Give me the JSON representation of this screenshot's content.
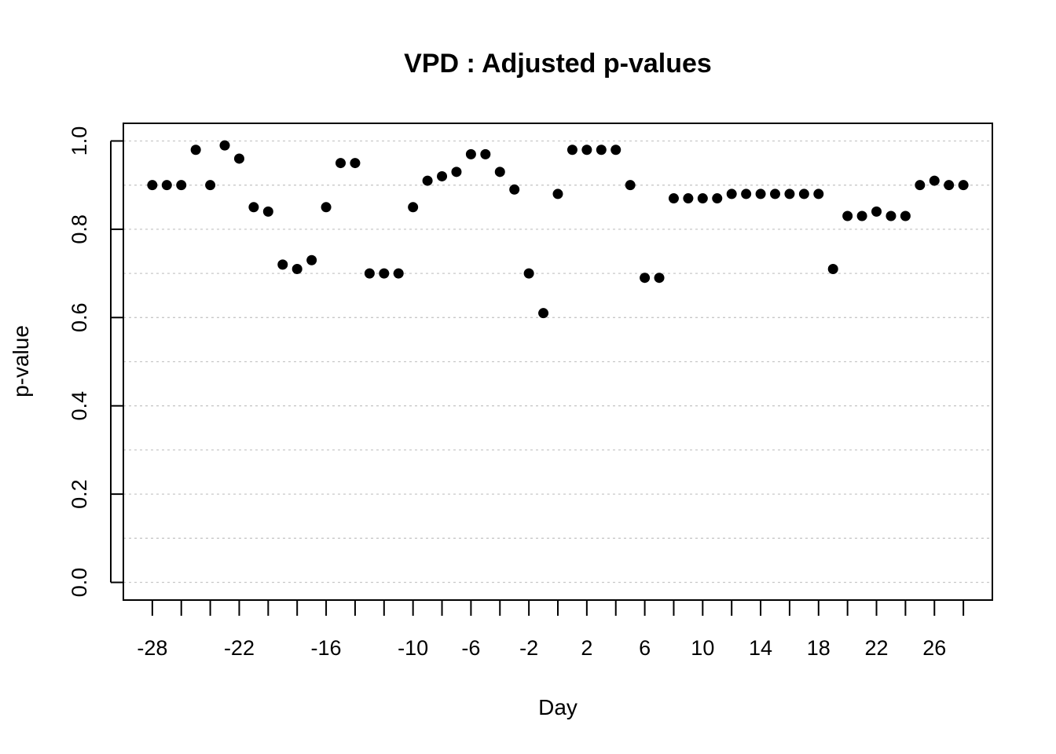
{
  "chart_data": {
    "type": "scatter",
    "title": "VPD : Adjusted p-values",
    "xlabel": "Day",
    "ylabel": "p-value",
    "xlim": [
      -30,
      30
    ],
    "ylim": [
      -0.04,
      1.04
    ],
    "x_ticks": [
      -28,
      -26,
      -24,
      -22,
      -20,
      -18,
      -16,
      -14,
      -12,
      -10,
      -8,
      -6,
      -4,
      -2,
      0,
      2,
      4,
      6,
      8,
      10,
      12,
      14,
      16,
      18,
      20,
      22,
      24,
      26,
      28
    ],
    "x_tick_labels": [
      "-28",
      "-22",
      "-16",
      "-10",
      "-6",
      "-2",
      "2",
      "6",
      "10",
      "14",
      "18",
      "22",
      "26"
    ],
    "x_tick_label_values": [
      -28,
      -22,
      -16,
      -10,
      -6,
      -2,
      2,
      6,
      10,
      14,
      18,
      22,
      26
    ],
    "y_ticks": [
      0.0,
      0.2,
      0.4,
      0.6,
      0.8,
      1.0
    ],
    "y_tick_labels": [
      "0.0",
      "0.2",
      "0.4",
      "0.6",
      "0.8",
      "1.0"
    ],
    "grid": true,
    "grid_y": [
      0.0,
      0.1,
      0.2,
      0.3,
      0.4,
      0.5,
      0.6,
      0.7,
      0.8,
      0.9,
      1.0
    ],
    "point_color": "#000000",
    "x": [
      -28,
      -27,
      -26,
      -25,
      -24,
      -23,
      -22,
      -21,
      -20,
      -19,
      -18,
      -17,
      -16,
      -15,
      -14,
      -13,
      -12,
      -11,
      -10,
      -9,
      -8,
      -7,
      -6,
      -5,
      -4,
      -3,
      -2,
      -1,
      0,
      1,
      2,
      3,
      4,
      5,
      6,
      7,
      8,
      9,
      10,
      11,
      12,
      13,
      14,
      15,
      16,
      17,
      18,
      19,
      20,
      21,
      22,
      23,
      24,
      25,
      26,
      27,
      28
    ],
    "y": [
      0.9,
      0.9,
      0.9,
      0.98,
      0.9,
      0.99,
      0.96,
      0.85,
      0.84,
      0.72,
      0.71,
      0.73,
      0.85,
      0.95,
      0.95,
      0.7,
      0.7,
      0.7,
      0.85,
      0.91,
      0.92,
      0.93,
      0.97,
      0.97,
      0.93,
      0.89,
      0.7,
      0.61,
      0.88,
      0.98,
      0.98,
      0.98,
      0.98,
      0.9,
      0.69,
      0.69,
      0.87,
      0.87,
      0.87,
      0.87,
      0.88,
      0.88,
      0.88,
      0.88,
      0.88,
      0.88,
      0.88,
      0.71,
      0.83,
      0.83,
      0.84,
      0.83,
      0.83,
      0.9,
      0.91,
      0.9,
      0.9
    ]
  }
}
